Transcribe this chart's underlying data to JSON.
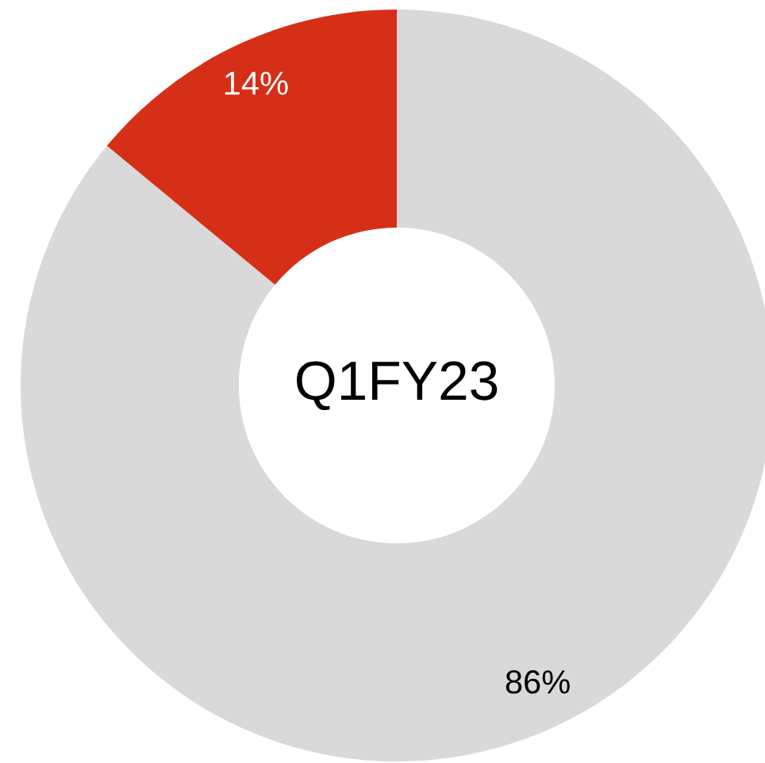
{
  "chart_data": {
    "type": "donut",
    "categories": [
      null,
      null
    ],
    "values": [
      86,
      14
    ],
    "colors": [
      "#d9d9d9",
      "#d62f18"
    ],
    "value_labels": [
      "86%",
      "14%"
    ],
    "annotations": [
      "Q1FY23"
    ],
    "legend": false
  }
}
